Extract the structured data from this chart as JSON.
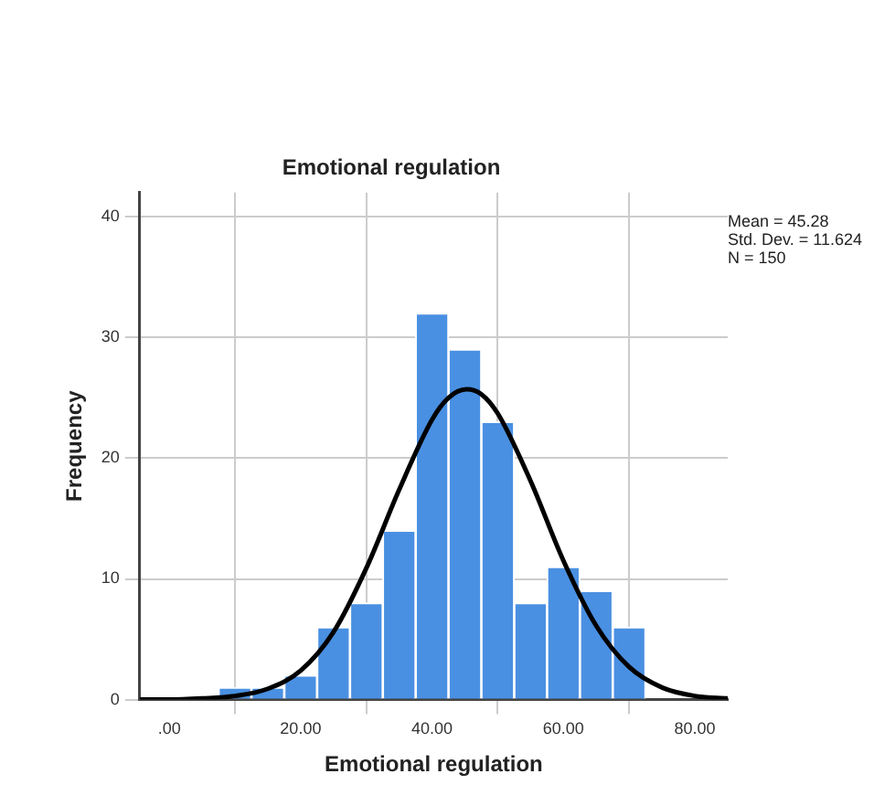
{
  "chart_data": {
    "type": "histogram",
    "title": "Emotional regulation",
    "xlabel": "Emotional regulation",
    "ylabel": "Frequency",
    "annotations": [
      "Mean = 45.28",
      "Std. Dev. = 11.624",
      "N = 150"
    ],
    "series": [
      {
        "color": "#4a90e2",
        "bins": [
          7.5,
          12.5,
          17.5,
          22.5,
          27.5,
          32.5,
          37.5,
          42.5,
          47.5,
          52.5,
          57.5,
          62.5,
          67.5,
          72.5
        ],
        "values": [
          1,
          1,
          2,
          6,
          8,
          14,
          32,
          29,
          23,
          8,
          11,
          9,
          6
        ]
      },
      {
        "type": "line",
        "color": "#000000",
        "x": [
          -4.5,
          0,
          5,
          10,
          15,
          20,
          25,
          30,
          35,
          40,
          42.5,
          45.28,
          47.5,
          50,
          55,
          60,
          65,
          70,
          75,
          80,
          85
        ],
        "values": [
          0,
          0,
          0.1,
          0.3,
          0.9,
          2.4,
          5.6,
          10.9,
          17.4,
          23.2,
          25.0,
          25.7,
          25.3,
          23.7,
          18.1,
          11.5,
          6.1,
          2.7,
          1.0,
          0.3,
          0.1
        ]
      }
    ],
    "xlim": [
      -4.5,
      85
    ],
    "xticks": [
      {
        "value": 0,
        "label": ".00"
      },
      {
        "value": 20,
        "label": "20.00"
      },
      {
        "value": 40,
        "label": "40.00"
      },
      {
        "value": 60,
        "label": "60.00"
      },
      {
        "value": 80,
        "label": "80.00"
      }
    ],
    "ylim": [
      0,
      42
    ],
    "yticks": [
      0,
      10,
      20,
      30,
      40
    ],
    "grid": true,
    "legend": false,
    "marker": "none",
    "line_style": "solid"
  }
}
